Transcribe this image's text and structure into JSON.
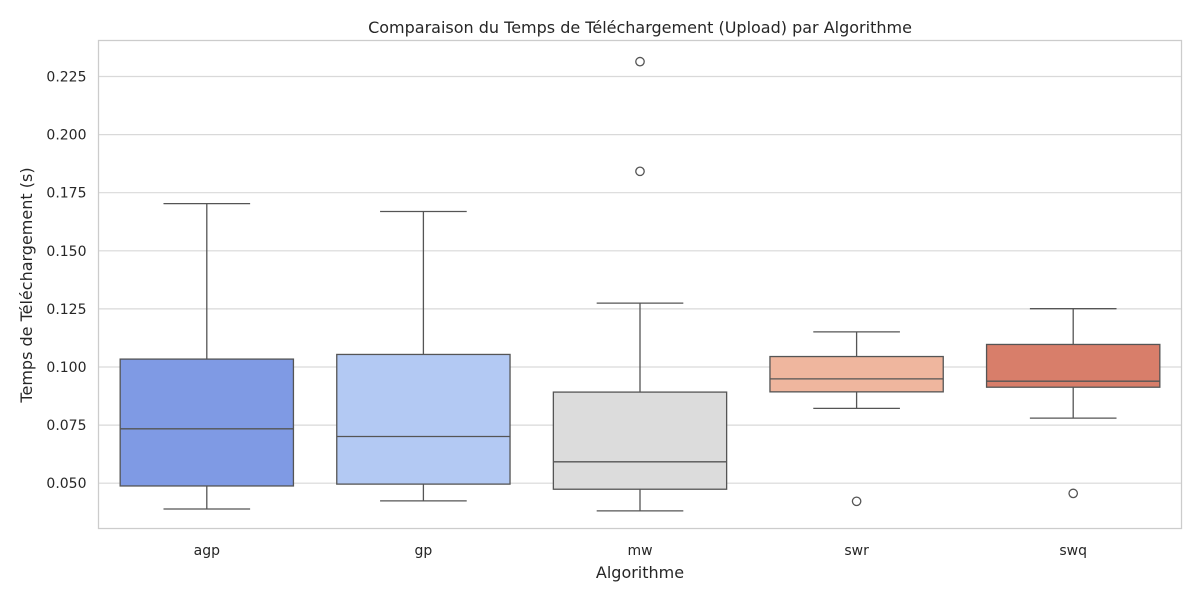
{
  "chart_data": {
    "type": "box",
    "title": "Comparaison du Temps de Téléchargement (Upload) par Algorithme",
    "xlabel": "Algorithme",
    "ylabel": "Temps de Téléchargement (s)",
    "ylim": [
      0.0305,
      0.2405
    ],
    "yticks": [
      0.05,
      0.075,
      0.1,
      0.125,
      0.15,
      0.175,
      0.2,
      0.225
    ],
    "ytick_labels": [
      "0.050",
      "0.075",
      "0.100",
      "0.125",
      "0.150",
      "0.175",
      "0.200",
      "0.225"
    ],
    "grid": true,
    "categories": [
      "agp",
      "gp",
      "mw",
      "swr",
      "swq"
    ],
    "boxes": [
      {
        "name": "agp",
        "whisker_low": 0.0389,
        "q1": 0.0488,
        "median": 0.0734,
        "q3": 0.1034,
        "whisker_high": 0.1703,
        "outliers": [],
        "color": "#7f9ae4"
      },
      {
        "name": "gp",
        "whisker_low": 0.0424,
        "q1": 0.0496,
        "median": 0.0701,
        "q3": 0.1054,
        "whisker_high": 0.1669,
        "outliers": [],
        "color": "#b3c9f3"
      },
      {
        "name": "mw",
        "whisker_low": 0.0381,
        "q1": 0.0474,
        "median": 0.0592,
        "q3": 0.0892,
        "whisker_high": 0.1275,
        "outliers": [
          0.1842,
          0.2314
        ],
        "color": "#dcdcdc"
      },
      {
        "name": "swr",
        "whisker_low": 0.0822,
        "q1": 0.0893,
        "median": 0.0949,
        "q3": 0.1045,
        "whisker_high": 0.1151,
        "outliers": [
          0.0422
        ],
        "color": "#efb69e"
      },
      {
        "name": "swq",
        "whisker_low": 0.078,
        "q1": 0.0913,
        "median": 0.0939,
        "q3": 0.1097,
        "whisker_high": 0.1251,
        "outliers": [
          0.0456
        ],
        "color": "#d87e6a"
      }
    ]
  }
}
